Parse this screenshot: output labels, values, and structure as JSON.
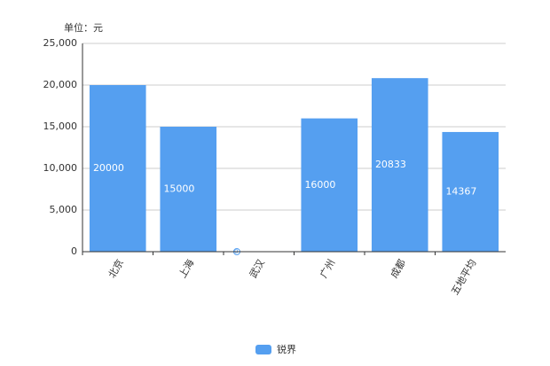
{
  "chart_data": {
    "type": "bar",
    "unit_label": "单位：元",
    "categories": [
      "北京",
      "上海",
      "武汉",
      "广州",
      "成都",
      "五地平均"
    ],
    "series": [
      {
        "name": "锐界",
        "color": "#559ff0",
        "values": [
          20000,
          15000,
          0,
          16000,
          20833,
          14367
        ]
      }
    ],
    "ylim": [
      0,
      25000
    ],
    "yticks": [
      0,
      {
        "value": 5000,
        "label": "5,000"
      },
      {
        "value": 10000,
        "label": "10,000"
      },
      {
        "value": 15000,
        "label": "15,000"
      },
      {
        "value": 20000,
        "label": "20,000"
      },
      {
        "value": 25000,
        "label": "25,000"
      }
    ],
    "grid": true,
    "legend": "bottom"
  }
}
